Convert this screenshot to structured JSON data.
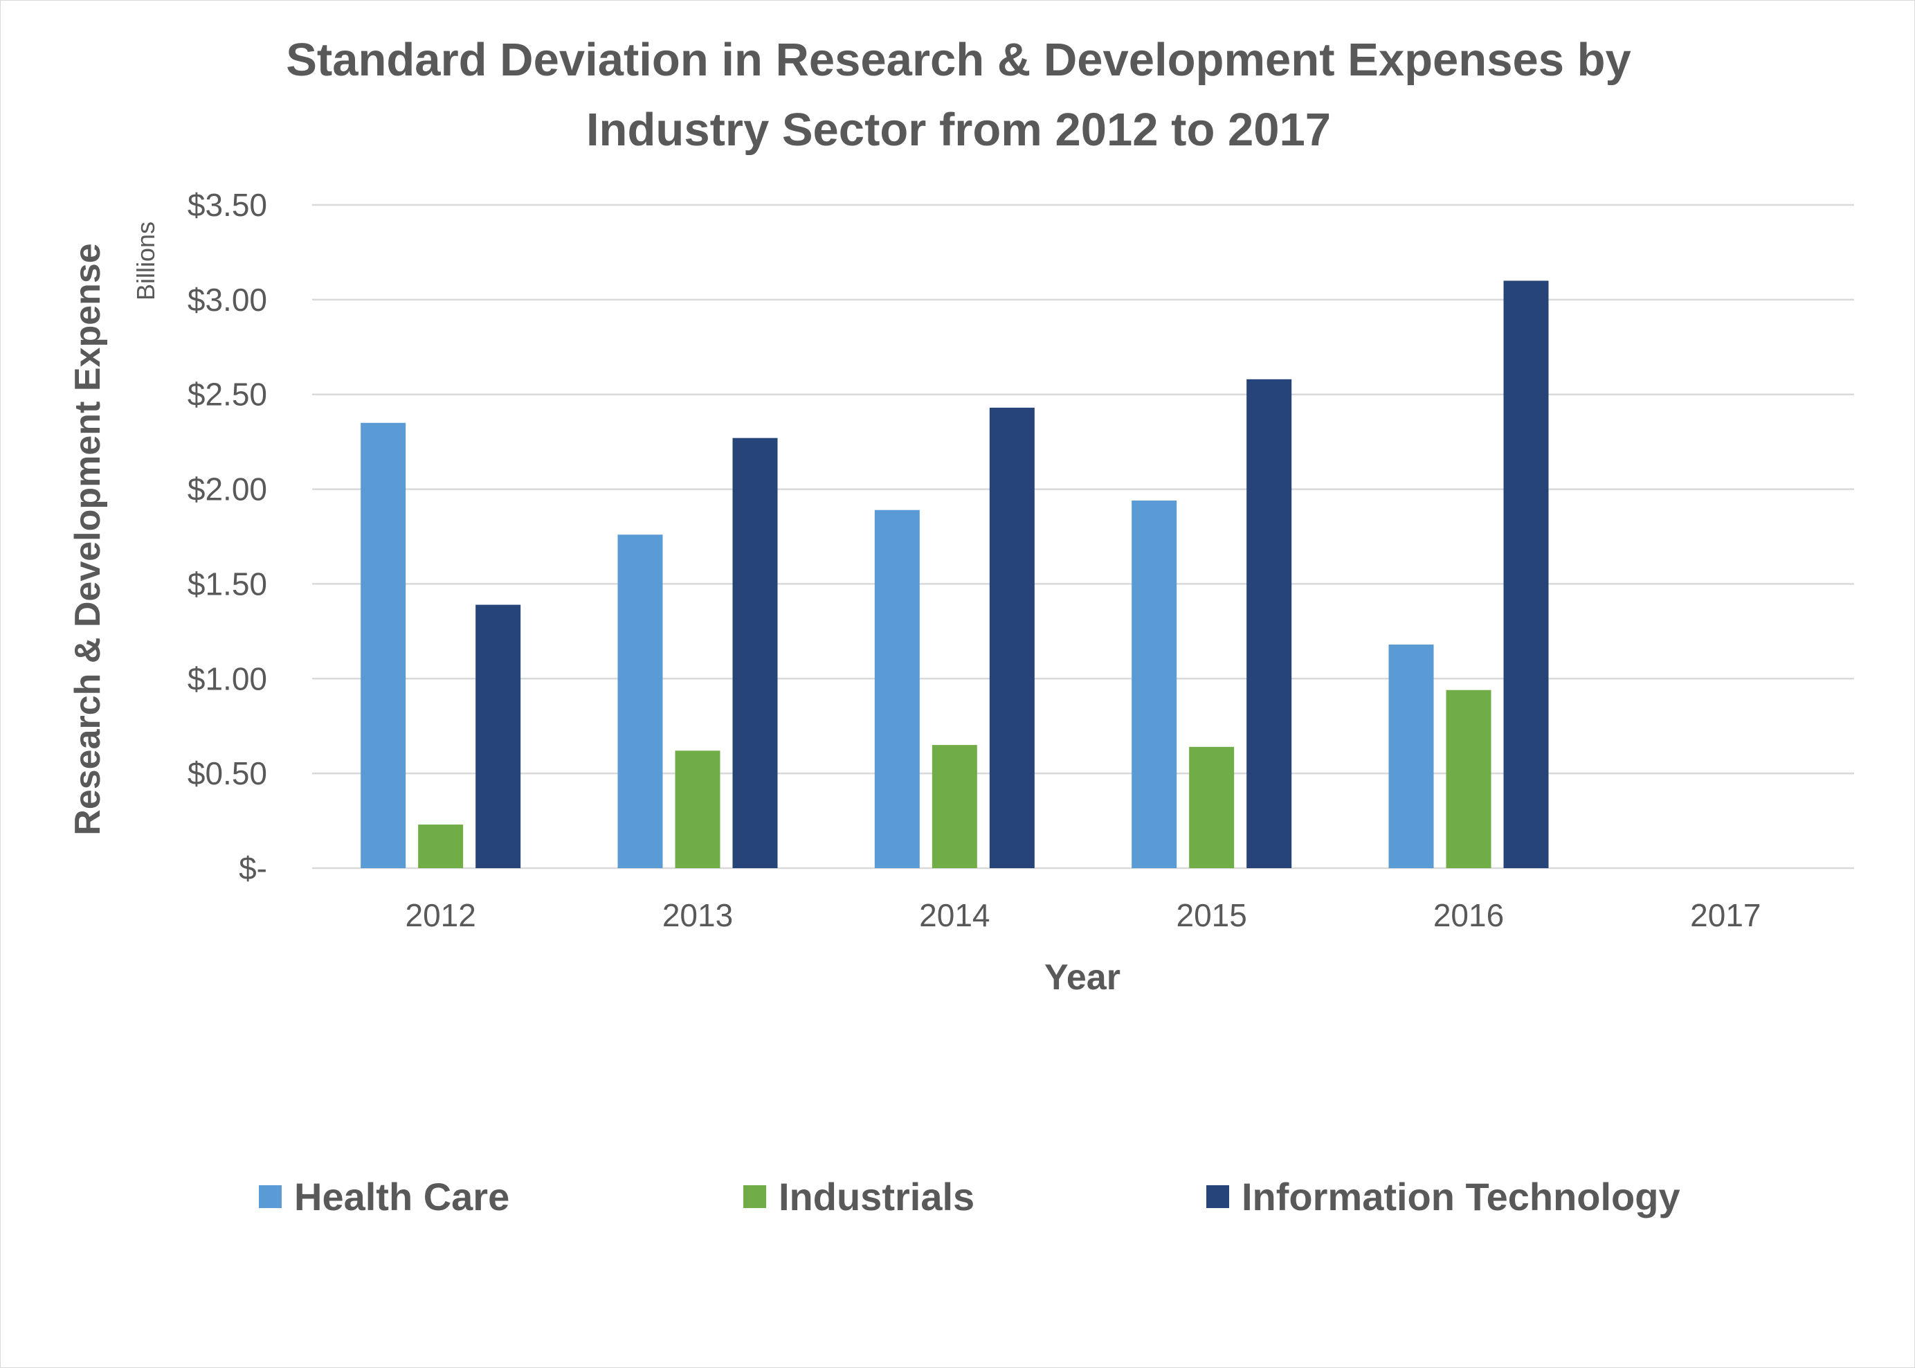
{
  "chart_data": {
    "type": "bar",
    "title_lines": [
      "Standard Deviation in Research & Development Expenses by",
      "Industry Sector from 2012 to 2017"
    ],
    "xlabel": "Year",
    "ylabel": "Research & Development  Expense",
    "y_units": "Billions",
    "categories": [
      "2012",
      "2013",
      "2014",
      "2015",
      "2016",
      "2017"
    ],
    "yticks": [
      0,
      0.5,
      1.0,
      1.5,
      2.0,
      2.5,
      3.0,
      3.5
    ],
    "ytick_labels": [
      "$-",
      "$0.50",
      "$1.00",
      "$1.50",
      "$2.00",
      "$2.50",
      "$3.00",
      "$3.50"
    ],
    "ylim": [
      0,
      3.5
    ],
    "grid": true,
    "legend_position": "bottom",
    "series": [
      {
        "name": "Health Care",
        "color": "#5b9bd5",
        "values": [
          2.35,
          1.76,
          1.89,
          1.94,
          1.18,
          null
        ]
      },
      {
        "name": "Industrials",
        "color": "#70ad47",
        "values": [
          0.23,
          0.62,
          0.65,
          0.64,
          0.94,
          null
        ]
      },
      {
        "name": "Information Technology",
        "color": "#264478",
        "values": [
          1.39,
          2.27,
          2.43,
          2.58,
          3.1,
          null
        ]
      }
    ]
  }
}
